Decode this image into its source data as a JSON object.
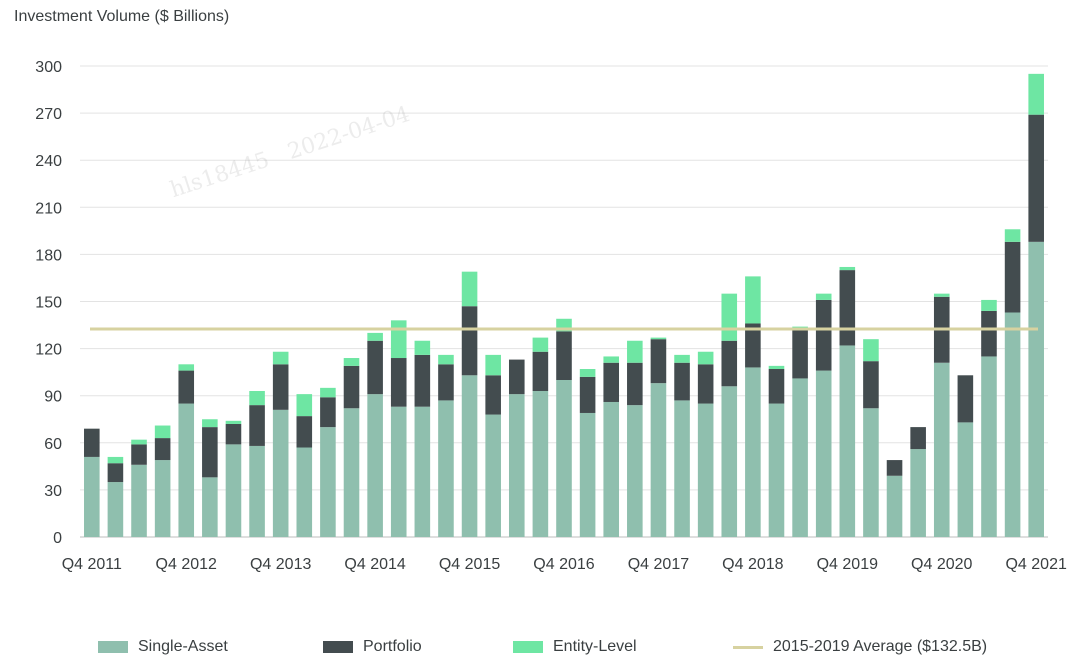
{
  "chart_data": {
    "type": "bar",
    "stacked": true,
    "ylabel": "Investment Volume ($ Billions)",
    "ylim": [
      0,
      300
    ],
    "yticks": [
      0,
      30,
      60,
      90,
      120,
      150,
      180,
      210,
      240,
      270,
      300
    ],
    "grid": true,
    "categories": [
      "Q4 2011",
      "Q1 2012",
      "Q2 2012",
      "Q3 2012",
      "Q4 2012",
      "Q1 2013",
      "Q2 2013",
      "Q3 2013",
      "Q4 2013",
      "Q1 2014",
      "Q2 2014",
      "Q3 2014",
      "Q4 2014",
      "Q1 2015",
      "Q2 2015",
      "Q3 2015",
      "Q4 2015",
      "Q1 2016",
      "Q2 2016",
      "Q3 2016",
      "Q4 2016",
      "Q1 2017",
      "Q2 2017",
      "Q3 2017",
      "Q4 2017",
      "Q1 2018",
      "Q2 2018",
      "Q3 2018",
      "Q4 2018",
      "Q1 2019",
      "Q2 2019",
      "Q3 2019",
      "Q4 2019",
      "Q1 2020",
      "Q2 2020",
      "Q3 2020",
      "Q4 2020",
      "Q1 2021",
      "Q2 2021",
      "Q3 2021",
      "Q4 2021"
    ],
    "xtick_labels": [
      "Q4 2011",
      "Q4 2012",
      "Q4 2013",
      "Q4 2014",
      "Q4 2015",
      "Q4 2016",
      "Q4 2017",
      "Q4 2018",
      "Q4 2019",
      "Q4 2020",
      "Q4 2021"
    ],
    "series": [
      {
        "name": "Single-Asset",
        "color": "#8fbfae",
        "values": [
          51,
          35,
          46,
          49,
          85,
          38,
          59,
          58,
          81,
          57,
          70,
          82,
          91,
          83,
          83,
          87,
          103,
          78,
          91,
          93,
          100,
          79,
          86,
          84,
          98,
          87,
          85,
          96,
          108,
          85,
          101,
          106,
          122,
          82,
          39,
          56,
          111,
          73,
          115,
          143,
          188
        ]
      },
      {
        "name": "Portfolio",
        "color": "#434c4f",
        "values": [
          18,
          12,
          13,
          14,
          21,
          32,
          13,
          26,
          29,
          20,
          19,
          27,
          34,
          31,
          33,
          23,
          44,
          25,
          22,
          25,
          31,
          23,
          25,
          27,
          28,
          24,
          25,
          29,
          28,
          22,
          32,
          45,
          48,
          30,
          10,
          14,
          42,
          30,
          29,
          45,
          81
        ]
      },
      {
        "name": "Entity-Level",
        "color": "#6ee6a3",
        "values": [
          0,
          4,
          3,
          8,
          4,
          5,
          2,
          9,
          8,
          14,
          6,
          5,
          5,
          24,
          9,
          6,
          22,
          13,
          0,
          9,
          8,
          5,
          4,
          14,
          1,
          5,
          8,
          30,
          30,
          2,
          1,
          4,
          2,
          14,
          0,
          0,
          2,
          0,
          7,
          8,
          26
        ]
      }
    ],
    "reference_line": {
      "name": "2015-2019 Average ($132.5B)",
      "value": 132.5,
      "color": "#d7d2a0"
    }
  },
  "legend": {
    "single_asset": "Single-Asset",
    "portfolio": "Portfolio",
    "entity_level": "Entity-Level",
    "average": "2015-2019 Average ($132.5B)"
  }
}
